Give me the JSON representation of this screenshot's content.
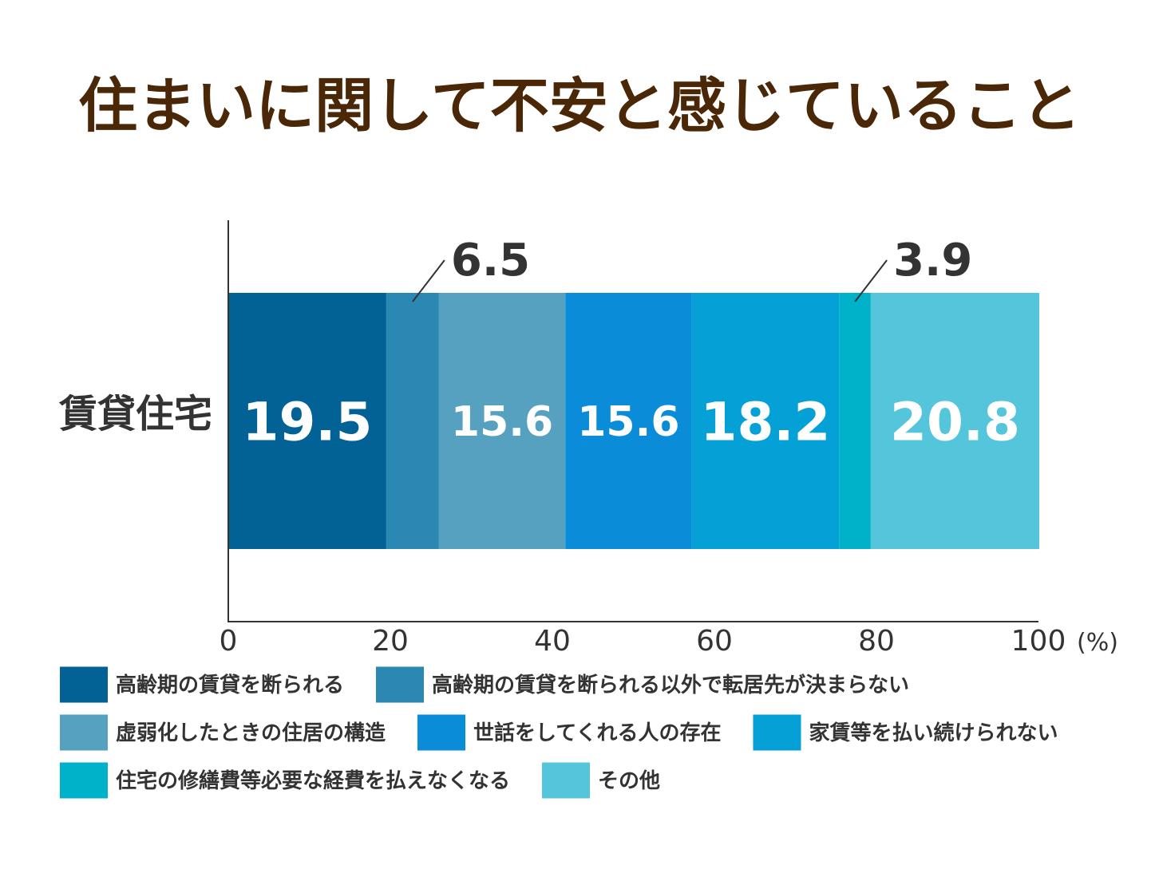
{
  "chart_data": {
    "type": "bar",
    "orientation": "horizontal",
    "stacked": true,
    "title": "住まいに関して不安と感じていること",
    "categories": [
      "賃貸住宅"
    ],
    "unit": "(%)",
    "xlim": [
      0,
      100
    ],
    "x_ticks": [
      "0",
      "20",
      "40",
      "60",
      "80",
      "100"
    ],
    "grid": false,
    "legend_position": "bottom",
    "series": [
      {
        "name": "高齢期の賃貸を断られる",
        "values": [
          19.5
        ],
        "label": "19.5",
        "color": "#036295"
      },
      {
        "name": "高齢期の賃貸を断られる以外で転居先が決まらない",
        "values": [
          6.5
        ],
        "label": "6.5",
        "color": "#2a88b2"
      },
      {
        "name": "虚弱化したときの住居の構造",
        "values": [
          15.6
        ],
        "label": "15.6",
        "color": "#56a1bf"
      },
      {
        "name": "世話をしてくれる人の存在",
        "values": [
          15.6
        ],
        "label": "15.6",
        "color": "#0a8cd9"
      },
      {
        "name": "家賃等を払い続けられない",
        "values": [
          18.2
        ],
        "label": "18.2",
        "color": "#04a0d6"
      },
      {
        "name": "住宅の修繕費等必要な経費を払えなくなる",
        "values": [
          3.9
        ],
        "label": "3.9",
        "color": "#00b2c9"
      },
      {
        "name": "その他",
        "values": [
          20.8
        ],
        "label": "20.8",
        "color": "#55c5dc"
      }
    ]
  }
}
